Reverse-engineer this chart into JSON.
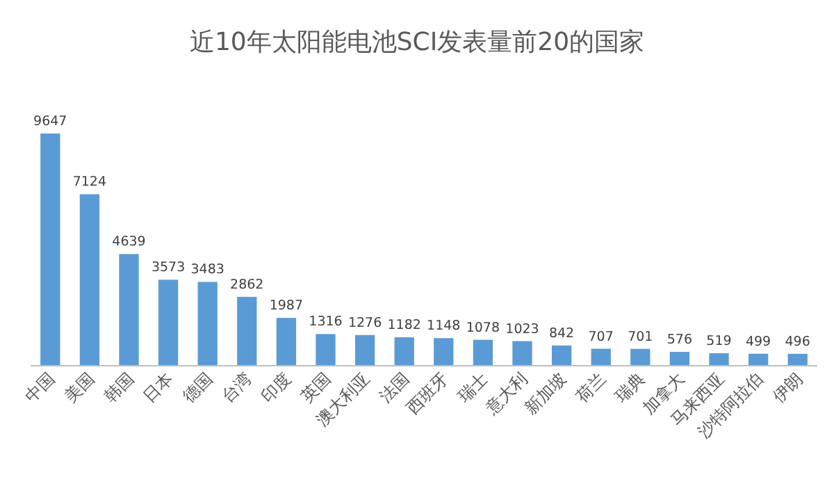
{
  "chart_data": {
    "type": "bar",
    "title": "近10年太阳能电池SCI发表量前20的国家",
    "categories": [
      "中国",
      "美国",
      "韩国",
      "日本",
      "德国",
      "台湾",
      "印度",
      "英国",
      "澳大利亚",
      "法国",
      "西班牙",
      "瑞士",
      "意大利",
      "新加坡",
      "荷兰",
      "瑞典",
      "加拿大",
      "马来西亚",
      "沙特阿拉伯",
      "伊朗"
    ],
    "values": [
      9647,
      7124,
      4639,
      3573,
      3483,
      2862,
      1987,
      1316,
      1276,
      1182,
      1148,
      1078,
      1023,
      842,
      707,
      701,
      576,
      519,
      499,
      496
    ],
    "color": "#5b9bd5",
    "data_labels": true
  }
}
